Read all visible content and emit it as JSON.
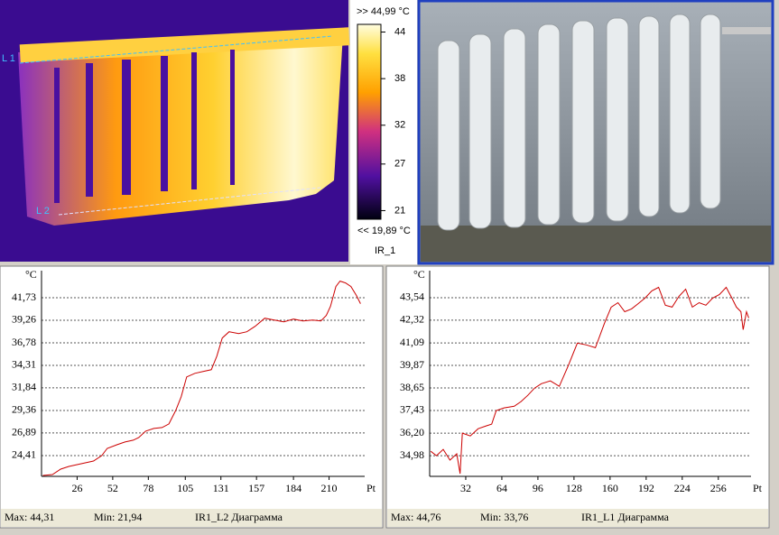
{
  "thermal": {
    "name": "IR_1",
    "line_labels": [
      "L 1",
      "L 2"
    ],
    "scale_max": ">> 44,99 °C",
    "scale_min": "<< 19,89 °C",
    "scale_lim": [
      19.89,
      44.99
    ],
    "scale_ticks": [
      44,
      38,
      32,
      27,
      21
    ]
  },
  "chart_data": [
    {
      "type": "line",
      "title": "IR1_L2 Диаграмма",
      "stats": [
        "Max: 44,31",
        "Min: 21,94"
      ],
      "y_unit": "°C",
      "x_unit": "Pt",
      "color": "#cc0000",
      "grid": true,
      "x": [
        1,
        8,
        14,
        20,
        26,
        32,
        38,
        44,
        48,
        55,
        61,
        67,
        71,
        76,
        82,
        88,
        93,
        98,
        102,
        106,
        112,
        118,
        124,
        128,
        132,
        137,
        144,
        150,
        156,
        163,
        170,
        177,
        184,
        191,
        198,
        204,
        208,
        211,
        215,
        218,
        222,
        226,
        230,
        233
      ],
      "values": [
        22.23,
        22.33,
        22.92,
        23.22,
        23.42,
        23.62,
        23.81,
        24.41,
        25.2,
        25.6,
        25.9,
        26.1,
        26.39,
        27.09,
        27.39,
        27.49,
        27.88,
        29.37,
        30.86,
        33.04,
        33.44,
        33.64,
        33.83,
        35.32,
        37.31,
        38.0,
        37.8,
        38.0,
        38.6,
        39.49,
        39.29,
        39.09,
        39.39,
        39.19,
        39.29,
        39.19,
        39.79,
        40.78,
        42.96,
        43.56,
        43.36,
        42.96,
        41.97,
        41.08
      ],
      "xlim": [
        0,
        236
      ],
      "xticks": [
        26,
        52,
        78,
        105,
        131,
        157,
        184,
        210
      ],
      "ylim": [
        22.13,
        44.21
      ],
      "yticks": [
        {
          "value": 24.41,
          "label": "24,41"
        },
        {
          "value": 26.89,
          "label": "26,89"
        },
        {
          "value": 29.36,
          "label": "29,36"
        },
        {
          "value": 31.84,
          "label": "31,84"
        },
        {
          "value": 34.31,
          "label": "34,31"
        },
        {
          "value": 36.78,
          "label": "36,78"
        },
        {
          "value": 39.26,
          "label": "39,26"
        },
        {
          "value": 41.73,
          "label": "41,73"
        }
      ]
    },
    {
      "type": "line",
      "title": "IR1_L1 Диаграмма",
      "stats": [
        "Max: 44,76",
        "Min: 33,76"
      ],
      "y_unit": "°C",
      "x_unit": "Pt",
      "color": "#cc0000",
      "grid": true,
      "x": [
        1,
        6,
        12,
        18,
        24,
        27,
        29,
        36,
        43,
        50,
        55,
        59,
        66,
        75,
        81,
        87,
        93,
        99,
        107,
        115,
        123,
        131,
        139,
        147,
        155,
        161,
        167,
        173,
        179,
        185,
        191,
        197,
        203,
        209,
        215,
        221,
        227,
        233,
        239,
        245,
        251,
        257,
        263,
        268,
        272,
        276,
        278,
        281,
        283
      ],
      "values": [
        35.22,
        34.98,
        35.32,
        34.74,
        35.08,
        34.0,
        36.2,
        36.05,
        36.44,
        36.59,
        36.69,
        37.42,
        37.57,
        37.66,
        37.91,
        38.25,
        38.64,
        38.88,
        39.03,
        38.74,
        39.86,
        41.08,
        40.98,
        40.83,
        42.15,
        43.03,
        43.27,
        42.78,
        42.93,
        43.22,
        43.52,
        43.91,
        44.1,
        43.13,
        43.03,
        43.61,
        44.0,
        43.03,
        43.27,
        43.13,
        43.52,
        43.71,
        44.1,
        43.52,
        43.03,
        42.78,
        41.81,
        42.78,
        42.44
      ],
      "xlim": [
        0,
        285
      ],
      "xticks": [
        32,
        64,
        96,
        128,
        160,
        192,
        224,
        256
      ],
      "ylim": [
        33.86,
        44.76
      ],
      "yticks": [
        {
          "value": 34.98,
          "label": "34,98"
        },
        {
          "value": 36.2,
          "label": "36,20"
        },
        {
          "value": 37.43,
          "label": "37,43"
        },
        {
          "value": 38.65,
          "label": "38,65"
        },
        {
          "value": 39.87,
          "label": "39,87"
        },
        {
          "value": 41.09,
          "label": "41,09"
        },
        {
          "value": 42.32,
          "label": "42,32"
        },
        {
          "value": 43.54,
          "label": "43,54"
        }
      ]
    }
  ]
}
